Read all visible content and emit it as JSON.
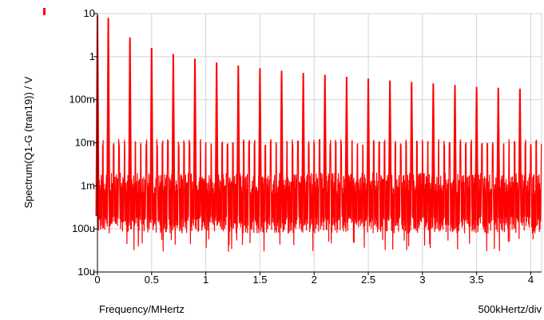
{
  "chart_data": {
    "type": "line",
    "title": "",
    "xlabel": "Frequency/MHertz",
    "ylabel": "Spectrum(Q1-G (tran19)) / V",
    "x_scale_note": "500kHertz/div",
    "x_scale": "linear",
    "y_scale": "log",
    "xlim": [
      0,
      4.1
    ],
    "ylim": [
      1e-05,
      10
    ],
    "grid": true,
    "legend": "top-left marker only",
    "x_ticks": [
      0,
      0.5,
      1,
      1.5,
      2,
      2.5,
      3,
      3.5,
      4
    ],
    "x_tick_labels": [
      "0",
      "0.5",
      "1",
      "1.5",
      "2",
      "2.5",
      "3",
      "3.5",
      "4"
    ],
    "y_ticks": [
      1e-05,
      0.0001,
      0.001,
      0.01,
      0.1,
      1,
      10
    ],
    "y_tick_labels": [
      "10u",
      "100u",
      "1m",
      "10m",
      "100m",
      "1",
      "10"
    ],
    "series": [
      {
        "color": "#ff0000",
        "harmonic_peaks": {
          "x": [
            0.0,
            0.1,
            0.3,
            0.5,
            0.7,
            0.9,
            1.1,
            1.3,
            1.5,
            1.7,
            1.9,
            2.1,
            2.3,
            2.5,
            2.7,
            2.9,
            3.1,
            3.3,
            3.5,
            3.7,
            3.9
          ],
          "y": [
            9.0,
            8.0,
            2.8,
            1.6,
            1.15,
            0.9,
            0.73,
            0.62,
            0.54,
            0.47,
            0.42,
            0.38,
            0.34,
            0.31,
            0.28,
            0.26,
            0.24,
            0.22,
            0.2,
            0.19,
            0.18
          ]
        },
        "secondary_peaks_y": 0.012,
        "secondary_peak_spacing": 0.05,
        "noise_floor_y": [
          8e-05,
          0.002
        ],
        "noise_dips_y": [
          3e-05,
          6e-05
        ]
      }
    ]
  },
  "legend": {
    "color": "#ff0000"
  }
}
